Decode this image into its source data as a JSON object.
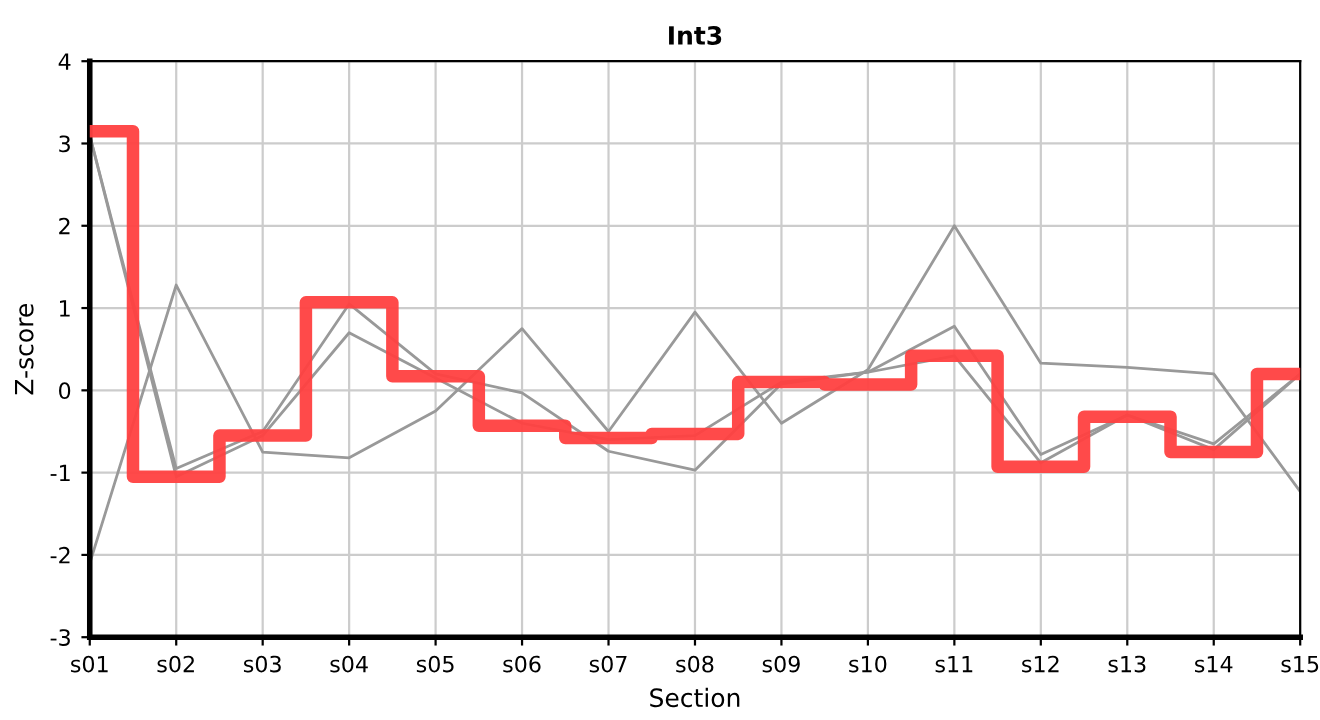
{
  "chart_data": {
    "type": "line",
    "title": "Int3",
    "xlabel": "Section",
    "ylabel": "Z-score",
    "categories": [
      "s01",
      "s02",
      "s03",
      "s04",
      "s05",
      "s06",
      "s07",
      "s08",
      "s09",
      "s10",
      "s11",
      "s12",
      "s13",
      "s14",
      "s15"
    ],
    "ylim": [
      -3,
      4
    ],
    "yticks": [
      -3,
      -2,
      -1,
      0,
      1,
      2,
      3,
      4
    ],
    "grid": true,
    "marker": "none",
    "line_style": "solid",
    "series": [
      {
        "color": "#999999",
        "values": [
          -2.1,
          1.28,
          -0.75,
          -0.82,
          -0.25,
          0.75,
          -0.5,
          0.95,
          -0.4,
          0.25,
          2.0,
          0.33,
          0.28,
          0.2,
          -1.23
        ]
      },
      {
        "color": "#999999",
        "values": [
          3.1,
          -0.95,
          -0.5,
          1.05,
          0.2,
          -0.03,
          -0.74,
          -0.97,
          0.08,
          0.22,
          0.78,
          -0.78,
          -0.3,
          -0.65,
          0.2
        ]
      },
      {
        "color": "#999999",
        "values": [
          3.1,
          -1.05,
          -0.55,
          0.7,
          0.15,
          -0.4,
          -0.6,
          -0.55,
          0.1,
          0.22,
          0.42,
          -0.88,
          -0.3,
          -0.72,
          0.2
        ]
      },
      {
        "type": "step",
        "color": "#ff4040",
        "values": [
          3.15,
          -1.05,
          -0.55,
          1.07,
          0.17,
          -0.43,
          -0.58,
          -0.53,
          0.1,
          0.07,
          0.42,
          -0.93,
          -0.32,
          -0.75,
          0.2
        ]
      }
    ]
  }
}
